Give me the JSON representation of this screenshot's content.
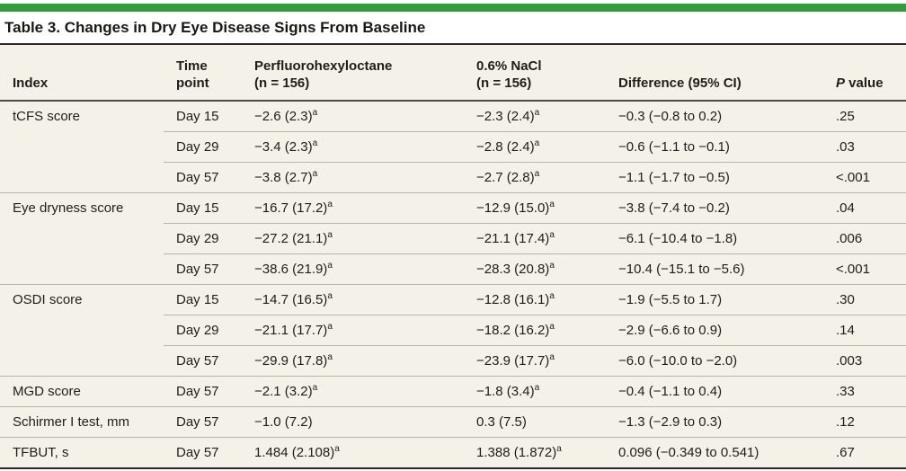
{
  "page": {
    "title": "Table 3. Changes in Dry Eye Disease Signs From Baseline",
    "accent_color": "#2f9d3a",
    "panel_background": "#f4f2e8"
  },
  "table": {
    "columns": [
      "Index",
      "Time\npoint",
      "Perfluorohexyloctane\n(n = 156)",
      "0.6% NaCl\n(n = 156)",
      "Difference (95% CI)",
      "P value"
    ],
    "footnote_marker": "a",
    "groups": [
      {
        "index": "tCFS score",
        "rows": [
          {
            "time": "Day 15",
            "pfhx": "−2.6 (2.3)^a",
            "nacl": "−2.3 (2.4)^a",
            "diff": "−0.3 (−0.8 to 0.2)",
            "p": ".25"
          },
          {
            "time": "Day 29",
            "pfhx": "−3.4 (2.3)^a",
            "nacl": "−2.8 (2.4)^a",
            "diff": "−0.6 (−1.1 to −0.1)",
            "p": ".03"
          },
          {
            "time": "Day 57",
            "pfhx": "−3.8 (2.7)^a",
            "nacl": "−2.7 (2.8)^a",
            "diff": "−1.1 (−1.7 to −0.5)",
            "p": "<.001"
          }
        ]
      },
      {
        "index": "Eye dryness score",
        "rows": [
          {
            "time": "Day 15",
            "pfhx": "−16.7 (17.2)^a",
            "nacl": "−12.9 (15.0)^a",
            "diff": "−3.8 (−7.4 to −0.2)",
            "p": ".04"
          },
          {
            "time": "Day 29",
            "pfhx": "−27.2 (21.1)^a",
            "nacl": "−21.1 (17.4)^a",
            "diff": "−6.1 (−10.4 to −1.8)",
            "p": ".006"
          },
          {
            "time": "Day 57",
            "pfhx": "−38.6 (21.9)^a",
            "nacl": "−28.3 (20.8)^a",
            "diff": "−10.4 (−15.1 to −5.6)",
            "p": "<.001"
          }
        ]
      },
      {
        "index": "OSDI score",
        "rows": [
          {
            "time": "Day 15",
            "pfhx": "−14.7 (16.5)^a",
            "nacl": "−12.8 (16.1)^a",
            "diff": "−1.9 (−5.5 to 1.7)",
            "p": ".30"
          },
          {
            "time": "Day 29",
            "pfhx": "−21.1 (17.7)^a",
            "nacl": "−18.2 (16.2)^a",
            "diff": "−2.9 (−6.6 to 0.9)",
            "p": ".14"
          },
          {
            "time": "Day 57",
            "pfhx": "−29.9 (17.8)^a",
            "nacl": "−23.9 (17.7)^a",
            "diff": "−6.0 (−10.0 to −2.0)",
            "p": ".003"
          }
        ]
      },
      {
        "index": "MGD score",
        "rows": [
          {
            "time": "Day 57",
            "pfhx": "−2.1 (3.2)^a",
            "nacl": "−1.8 (3.4)^a",
            "diff": "−0.4 (−1.1 to 0.4)",
            "p": ".33"
          }
        ]
      },
      {
        "index": "Schirmer I test, mm",
        "rows": [
          {
            "time": "Day 57",
            "pfhx": "−1.0 (7.2)",
            "nacl": "0.3 (7.5)",
            "diff": "−1.3 (−2.9 to 0.3)",
            "p": ".12"
          }
        ]
      },
      {
        "index": "TFBUT, s",
        "rows": [
          {
            "time": "Day 57",
            "pfhx": "1.484 (2.108)^a",
            "nacl": "1.388 (1.872)^a",
            "diff": "0.096 (−0.349 to 0.541)",
            "p": ".67"
          }
        ]
      }
    ]
  }
}
